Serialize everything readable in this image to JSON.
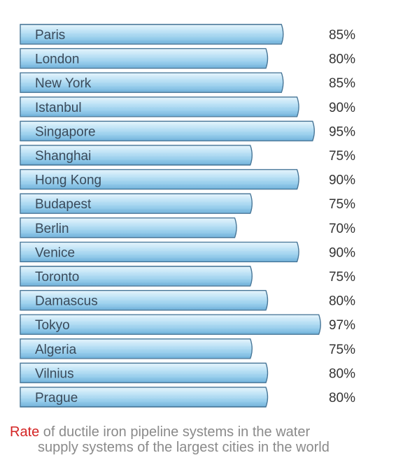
{
  "chart_data": {
    "type": "bar",
    "orientation": "horizontal",
    "categories": [
      "Paris",
      "London",
      "New York",
      "Istanbul",
      "Singapore",
      "Shanghai",
      "Hong Kong",
      "Budapest",
      "Berlin",
      "Venice",
      "Toronto",
      "Damascus",
      "Tokyo",
      "Algeria",
      "Vilnius",
      "Prague"
    ],
    "values": [
      85,
      80,
      85,
      90,
      95,
      75,
      90,
      75,
      70,
      90,
      75,
      80,
      97,
      75,
      80,
      80
    ],
    "value_labels": [
      "85%",
      "80%",
      "85%",
      "90%",
      "95%",
      "75%",
      "90%",
      "75%",
      "70%",
      "90%",
      "75%",
      "80%",
      "97%",
      "75%",
      "80%",
      "80%"
    ],
    "unit": "%",
    "bar_color": "#8ec9ea",
    "bar_edge_color": "#3e6f92"
  },
  "caption": {
    "accent_word": "Rate",
    "line1_rest": " of ductile iron pipeline systems in the water",
    "line2": "supply systems of the largest cities in the world",
    "accent_color": "#d42424",
    "text_color": "#8a8a8a"
  }
}
